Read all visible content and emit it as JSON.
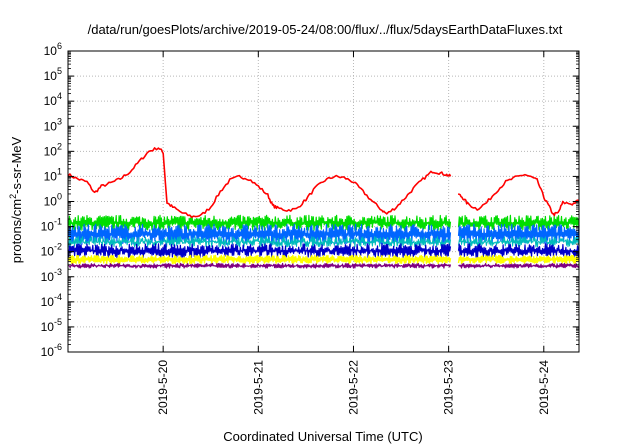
{
  "chart_data": {
    "type": "line",
    "title": "/data/run/goesPlots/archive/2019-05-24/08:00/flux/../flux/5daysEarthDataFluxes.txt",
    "xlabel": "Coordinated Universal Time (UTC)",
    "ylabel_parts": {
      "pre": "protons/cm",
      "sup": "2",
      "post": "-s-sr-MeV"
    },
    "yscale": "log",
    "ylim_exp": [
      -6,
      6
    ],
    "y_tick_base": "10",
    "y_tick_exponents": [
      "-6",
      "-5",
      "-4",
      "-3",
      "-2",
      "-1",
      "0",
      "1",
      "2",
      "3",
      "4",
      "5",
      "6"
    ],
    "xlim_days": [
      19.0,
      24.37
    ],
    "x_ticks": [
      {
        "day": 20,
        "label": "2019-5-20"
      },
      {
        "day": 21,
        "label": "2019-5-21"
      },
      {
        "day": 22,
        "label": "2019-5-22"
      },
      {
        "day": 23,
        "label": "2019-5-23"
      },
      {
        "day": 24,
        "label": "2019-5-24"
      }
    ],
    "grid": true,
    "data_gap_days": [
      23.02,
      23.1
    ],
    "series": [
      {
        "color": "#ff0000",
        "width": 1.6,
        "points": [
          [
            19.0,
            12
          ],
          [
            19.1,
            8
          ],
          [
            19.2,
            6
          ],
          [
            19.28,
            2.2
          ],
          [
            19.35,
            4
          ],
          [
            19.45,
            5.5
          ],
          [
            19.55,
            8
          ],
          [
            19.65,
            15
          ],
          [
            19.75,
            40
          ],
          [
            19.85,
            100
          ],
          [
            19.95,
            140
          ],
          [
            20.0,
            90
          ],
          [
            20.04,
            0.9
          ],
          [
            20.1,
            0.6
          ],
          [
            20.2,
            0.35
          ],
          [
            20.3,
            0.25
          ],
          [
            20.4,
            0.28
          ],
          [
            20.5,
            0.6
          ],
          [
            20.6,
            2.5
          ],
          [
            20.7,
            7
          ],
          [
            20.8,
            10
          ],
          [
            20.9,
            8
          ],
          [
            21.0,
            4
          ],
          [
            21.1,
            1.8
          ],
          [
            21.15,
            0.7
          ],
          [
            21.2,
            0.55
          ],
          [
            21.3,
            0.45
          ],
          [
            21.4,
            0.5
          ],
          [
            21.5,
            1.2
          ],
          [
            21.6,
            3.5
          ],
          [
            21.7,
            7
          ],
          [
            21.8,
            10
          ],
          [
            21.9,
            9
          ],
          [
            22.0,
            6
          ],
          [
            22.1,
            2.5
          ],
          [
            22.2,
            1
          ],
          [
            22.3,
            0.45
          ],
          [
            22.35,
            0.32
          ],
          [
            22.45,
            0.6
          ],
          [
            22.55,
            1.5
          ],
          [
            22.65,
            4
          ],
          [
            22.75,
            9
          ],
          [
            22.83,
            16
          ],
          [
            22.9,
            14
          ],
          [
            22.97,
            12
          ],
          [
            23.02,
            10
          ],
          [
            23.1,
            2
          ],
          [
            23.15,
            1.4
          ],
          [
            23.2,
            0.8
          ],
          [
            23.3,
            0.5
          ],
          [
            23.4,
            0.9
          ],
          [
            23.5,
            2.5
          ],
          [
            23.6,
            6
          ],
          [
            23.7,
            9
          ],
          [
            23.8,
            12
          ],
          [
            23.88,
            9
          ],
          [
            23.93,
            7
          ],
          [
            24.0,
            1.5
          ],
          [
            24.05,
            0.7
          ],
          [
            24.1,
            0.3
          ],
          [
            24.15,
            0.35
          ],
          [
            24.2,
            0.9
          ],
          [
            24.3,
            0.8
          ],
          [
            24.37,
            1.1
          ]
        ]
      },
      {
        "color": "#00dd00",
        "width": 1.2,
        "band": [
          0.1,
          0.2
        ],
        "noise": 0.3
      },
      {
        "color": "#0066ff",
        "width": 1.2,
        "band": [
          0.03,
          0.08
        ],
        "noise": 0.38
      },
      {
        "color": "#00bbbb",
        "width": 1.0,
        "band": [
          0.02,
          0.03
        ],
        "noise": 0.25
      },
      {
        "color": "#0000c8",
        "width": 1.2,
        "band": [
          0.008,
          0.015
        ],
        "noise": 0.28
      },
      {
        "color": "#ffff00",
        "width": 1.4,
        "band": [
          0.004,
          0.006
        ],
        "noise": 0.15
      },
      {
        "color": "#800080",
        "width": 1.2,
        "band": [
          0.0025,
          0.003
        ],
        "noise": 0.1
      }
    ]
  }
}
